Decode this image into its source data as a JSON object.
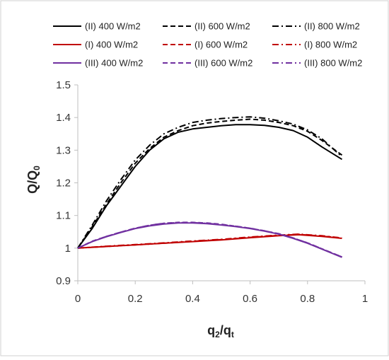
{
  "chart_data": {
    "type": "line",
    "title": "",
    "xlabel": "q2/qt",
    "ylabel": "Q/Q0",
    "xlim": [
      0,
      1
    ],
    "ylim": [
      0.9,
      1.5
    ],
    "xticks": [
      "0",
      "0.2",
      "0.4",
      "0.6",
      "0.8",
      "1"
    ],
    "yticks": [
      "0.9",
      "1",
      "1.1",
      "1.2",
      "1.3",
      "1.4",
      "1.5"
    ],
    "grid": false,
    "legend_position": "top",
    "colors": {
      "II": "#000000",
      "I": "#C00000",
      "III": "#7030A0"
    },
    "series": [
      {
        "name": "(II) 400 W/m2",
        "color": "#000000",
        "dash": "solid",
        "x": [
          0,
          0.05,
          0.1,
          0.15,
          0.2,
          0.25,
          0.3,
          0.35,
          0.4,
          0.45,
          0.5,
          0.55,
          0.6,
          0.65,
          0.7,
          0.75,
          0.8,
          0.85,
          0.92
        ],
        "y": [
          1.0,
          1.06,
          1.13,
          1.19,
          1.25,
          1.3,
          1.335,
          1.355,
          1.365,
          1.37,
          1.375,
          1.378,
          1.378,
          1.376,
          1.37,
          1.36,
          1.34,
          1.31,
          1.272
        ]
      },
      {
        "name": "(II) 600 W/m2",
        "color": "#000000",
        "dash": "dash",
        "x": [
          0,
          0.05,
          0.1,
          0.15,
          0.2,
          0.25,
          0.3,
          0.35,
          0.4,
          0.45,
          0.5,
          0.55,
          0.6,
          0.65,
          0.7,
          0.75,
          0.8,
          0.85,
          0.92
        ],
        "y": [
          1.0,
          1.065,
          1.135,
          1.2,
          1.26,
          1.305,
          1.34,
          1.36,
          1.375,
          1.383,
          1.388,
          1.392,
          1.395,
          1.392,
          1.385,
          1.375,
          1.358,
          1.33,
          1.285
        ]
      },
      {
        "name": "(II) 800 W/m2",
        "color": "#000000",
        "dash": "dashdot",
        "x": [
          0,
          0.05,
          0.1,
          0.15,
          0.2,
          0.25,
          0.3,
          0.35,
          0.4,
          0.45,
          0.5,
          0.55,
          0.6,
          0.65,
          0.7,
          0.75,
          0.8,
          0.85,
          0.92
        ],
        "y": [
          1.0,
          1.07,
          1.145,
          1.21,
          1.27,
          1.315,
          1.35,
          1.37,
          1.385,
          1.392,
          1.397,
          1.4,
          1.402,
          1.398,
          1.39,
          1.38,
          1.362,
          1.335,
          1.28
        ]
      },
      {
        "name": "(I) 400 W/m2",
        "color": "#C00000",
        "dash": "solid",
        "x": [
          0,
          0.1,
          0.2,
          0.3,
          0.4,
          0.5,
          0.6,
          0.7,
          0.77,
          0.85,
          0.92
        ],
        "y": [
          1.0,
          1.005,
          1.01,
          1.015,
          1.02,
          1.025,
          1.032,
          1.038,
          1.041,
          1.036,
          1.03
        ]
      },
      {
        "name": "(I) 600 W/m2",
        "color": "#C00000",
        "dash": "dash",
        "x": [
          0,
          0.1,
          0.2,
          0.3,
          0.4,
          0.5,
          0.6,
          0.7,
          0.77,
          0.85,
          0.92
        ],
        "y": [
          1.0,
          1.005,
          1.01,
          1.015,
          1.021,
          1.026,
          1.033,
          1.039,
          1.042,
          1.037,
          1.031
        ]
      },
      {
        "name": "(I) 800 W/m2",
        "color": "#C00000",
        "dash": "dashdot",
        "x": [
          0,
          0.1,
          0.2,
          0.3,
          0.4,
          0.5,
          0.6,
          0.7,
          0.77,
          0.85,
          0.92
        ],
        "y": [
          1.0,
          1.006,
          1.011,
          1.016,
          1.022,
          1.027,
          1.034,
          1.04,
          1.043,
          1.038,
          1.031
        ]
      },
      {
        "name": "(III) 400 W/m2",
        "color": "#7030A0",
        "dash": "solid",
        "x": [
          0,
          0.05,
          0.1,
          0.15,
          0.2,
          0.25,
          0.3,
          0.35,
          0.4,
          0.45,
          0.5,
          0.55,
          0.6,
          0.65,
          0.7,
          0.75,
          0.8,
          0.85,
          0.92
        ],
        "y": [
          1.0,
          1.02,
          1.035,
          1.048,
          1.06,
          1.068,
          1.074,
          1.077,
          1.077,
          1.075,
          1.071,
          1.066,
          1.06,
          1.052,
          1.043,
          1.03,
          1.015,
          0.997,
          0.972
        ]
      },
      {
        "name": "(III) 600 W/m2",
        "color": "#7030A0",
        "dash": "dash",
        "x": [
          0,
          0.05,
          0.1,
          0.15,
          0.2,
          0.25,
          0.3,
          0.35,
          0.4,
          0.45,
          0.5,
          0.55,
          0.6,
          0.65,
          0.7,
          0.75,
          0.8,
          0.85,
          0.92
        ],
        "y": [
          1.0,
          1.021,
          1.036,
          1.049,
          1.061,
          1.07,
          1.076,
          1.079,
          1.079,
          1.077,
          1.073,
          1.067,
          1.061,
          1.053,
          1.044,
          1.031,
          1.016,
          0.998,
          0.973
        ]
      },
      {
        "name": "(III) 800 W/m2",
        "color": "#7030A0",
        "dash": "dashdot",
        "x": [
          0,
          0.05,
          0.1,
          0.15,
          0.2,
          0.25,
          0.3,
          0.35,
          0.4,
          0.45,
          0.5,
          0.55,
          0.6,
          0.65,
          0.7,
          0.75,
          0.8,
          0.85,
          0.92
        ],
        "y": [
          1.0,
          1.02,
          1.036,
          1.049,
          1.061,
          1.07,
          1.076,
          1.078,
          1.078,
          1.076,
          1.072,
          1.067,
          1.061,
          1.053,
          1.044,
          1.031,
          1.016,
          0.998,
          0.973
        ]
      }
    ]
  }
}
